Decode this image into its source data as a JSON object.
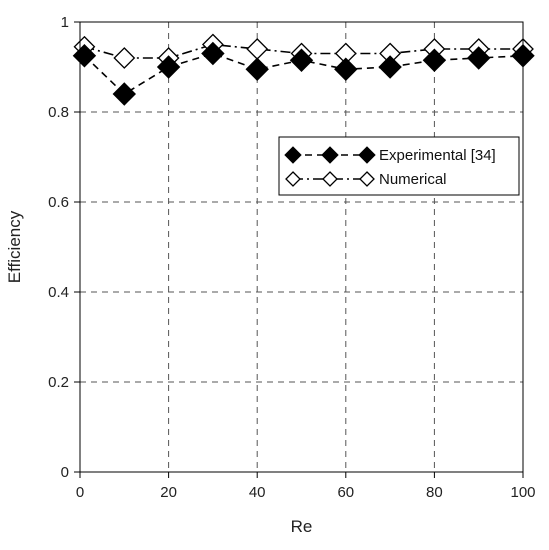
{
  "chart_data": {
    "type": "line",
    "xlabel": "Re",
    "ylabel": "Efficiency",
    "xlim": [
      0,
      100
    ],
    "ylim": [
      0,
      1
    ],
    "xticks": [
      0,
      20,
      40,
      60,
      80,
      100
    ],
    "yticks": [
      0,
      0.2,
      0.4,
      0.6,
      0.8,
      1
    ],
    "xtick_labels": [
      "0",
      "20",
      "40",
      "60",
      "80",
      "100"
    ],
    "ytick_labels": [
      "0",
      "0.2",
      "0.4",
      "0.6",
      "0.8",
      "1"
    ],
    "grid": true,
    "legend_position": "center-right",
    "series": [
      {
        "name": "Experimental [34]",
        "marker": "filled-diamond",
        "line_style": "dashed",
        "color": "#000000",
        "x": [
          1,
          10,
          20,
          30,
          40,
          50,
          60,
          70,
          80,
          90,
          100
        ],
        "y": [
          0.925,
          0.84,
          0.9,
          0.93,
          0.895,
          0.915,
          0.895,
          0.9,
          0.915,
          0.92,
          0.925
        ]
      },
      {
        "name": "Numerical",
        "marker": "open-diamond",
        "line_style": "dash-dot",
        "color": "#000000",
        "x": [
          1,
          10,
          20,
          30,
          40,
          50,
          60,
          70,
          80,
          90,
          100
        ],
        "y": [
          0.945,
          0.92,
          0.92,
          0.95,
          0.94,
          0.93,
          0.93,
          0.93,
          0.94,
          0.94,
          0.94
        ]
      }
    ]
  }
}
